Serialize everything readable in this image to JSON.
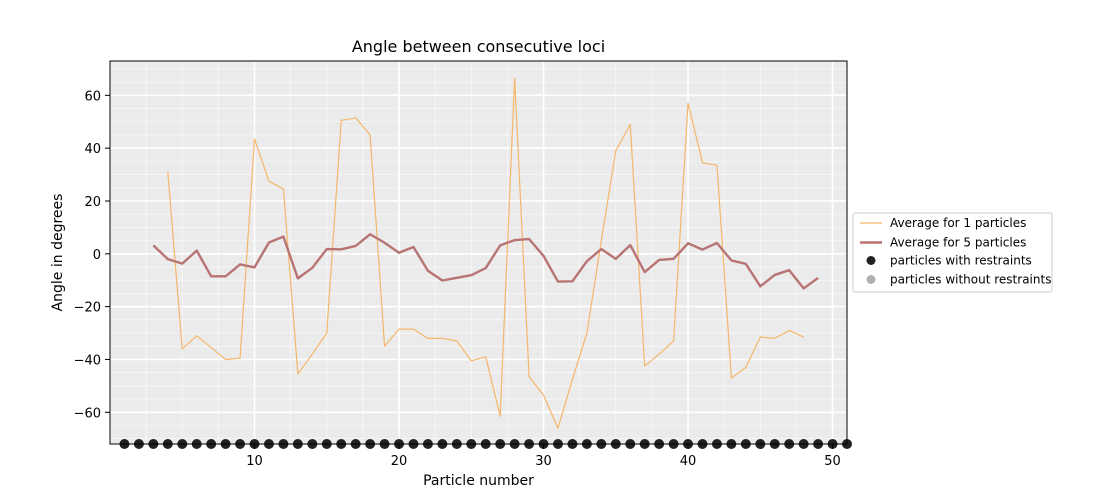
{
  "chart_data": {
    "type": "line",
    "title": "Angle between consecutive loci",
    "xlabel": "Particle number",
    "ylabel": "Angle in degrees",
    "xlim": [
      0,
      51
    ],
    "ylim": [
      -72,
      73
    ],
    "x_ticks": [
      10,
      20,
      30,
      40,
      50
    ],
    "y_ticks": [
      -60,
      -40,
      -20,
      0,
      20,
      40,
      60
    ],
    "grid": true,
    "background": "#ebebeb",
    "legend_position": "right",
    "series": [
      {
        "name": "Average for 1 particles",
        "color": "#f5b66b",
        "x": [
          4,
          5,
          6,
          7,
          8,
          9,
          10,
          11,
          12,
          13,
          14,
          15,
          16,
          17,
          18,
          19,
          20,
          21,
          22,
          23,
          24,
          25,
          26,
          27,
          28,
          29,
          30,
          31,
          32,
          33,
          34,
          35,
          36,
          37,
          38,
          39,
          40,
          41,
          42,
          43,
          44,
          45,
          46,
          47,
          48
        ],
        "y": [
          31,
          -36,
          -31,
          -35.5,
          -40,
          -39.5,
          43.5,
          27.5,
          24.5,
          -45.5,
          -38,
          -30,
          50.5,
          51.5,
          45,
          -35,
          -28.5,
          -28.5,
          -32,
          -32,
          -33,
          -40.5,
          -39,
          -61.5,
          66.5,
          -46.5,
          -53.5,
          -66,
          -47.5,
          -30,
          5,
          39,
          49,
          -42.5,
          -38,
          -33,
          57,
          34.5,
          33.5,
          -47,
          -43,
          -31.5,
          -32,
          -29,
          -31.5
        ]
      },
      {
        "name": "Average for 5 particles",
        "color": "#b87474",
        "x": [
          3,
          4,
          5,
          6,
          7,
          8,
          9,
          10,
          11,
          12,
          13,
          14,
          15,
          16,
          17,
          18,
          19,
          20,
          21,
          22,
          23,
          24,
          25,
          26,
          27,
          28,
          29,
          30,
          31,
          32,
          33,
          34,
          35,
          36,
          37,
          38,
          39,
          40,
          41,
          42,
          43,
          44,
          45,
          46,
          47,
          48,
          49
        ],
        "y": [
          3.2,
          -2,
          -3.7,
          1.2,
          -8.5,
          -8.5,
          -4,
          -5.1,
          4.3,
          6.5,
          -9.3,
          -5.3,
          1.8,
          1.7,
          3,
          7.4,
          4.2,
          0.4,
          2.6,
          -6.4,
          -10.1,
          -9.1,
          -8.1,
          -5.4,
          3.2,
          5.2,
          5.6,
          -0.8,
          -10.5,
          -10.4,
          -2.8,
          1.8,
          -1.9,
          3.3,
          -6.9,
          -2.3,
          -1.9,
          4,
          1.6,
          4.1,
          -2.5,
          -3.8,
          -12.3,
          -8,
          -6.2,
          -13.1,
          -9.1
        ]
      },
      {
        "name": "particles with restraints",
        "color": "#222222",
        "marker": "point",
        "x": [
          1,
          2,
          3,
          4,
          5,
          6,
          7,
          8,
          9,
          10,
          11,
          12,
          13,
          14,
          15,
          16,
          17,
          18,
          19,
          20,
          21,
          22,
          23,
          24,
          25,
          26,
          27,
          28,
          29,
          30,
          31,
          32,
          33,
          34,
          35,
          36,
          37,
          38,
          39,
          40,
          41,
          42,
          43,
          44,
          45,
          46,
          47,
          48,
          49,
          50,
          51
        ],
        "y_baseline": -72
      },
      {
        "name": "particles without restraints",
        "color": "#b0b0b0",
        "marker": "point",
        "x": []
      }
    ]
  }
}
